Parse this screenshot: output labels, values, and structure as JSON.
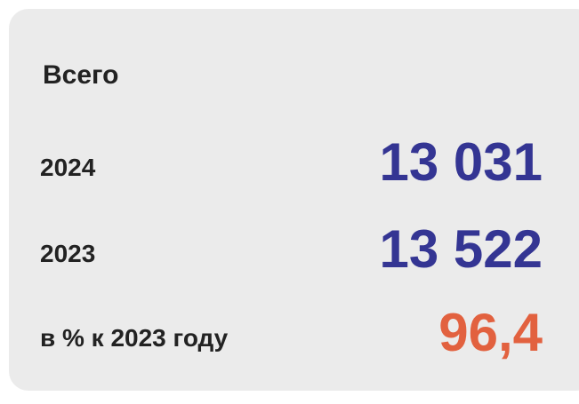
{
  "card": {
    "title": "Всего",
    "rows": [
      {
        "label": "2024",
        "value": "13 031"
      },
      {
        "label": "2023",
        "value": "13 522"
      },
      {
        "label": "в % к 2023 году",
        "value": "96,4"
      }
    ]
  }
}
